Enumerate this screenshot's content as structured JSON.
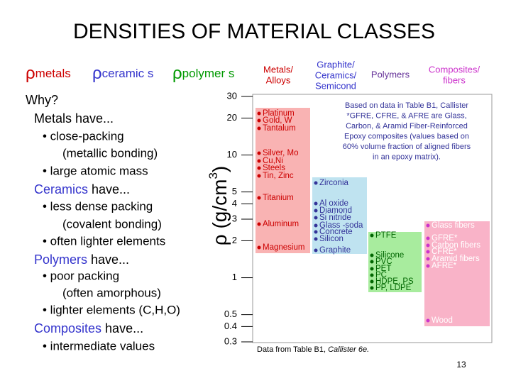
{
  "title": "DENSITIES OF MATERIAL CLASSES",
  "legend": [
    {
      "symbol": "ρ",
      "label": "metals",
      "color": "#cc0000"
    },
    {
      "symbol": "ρ",
      "label": "ceramic s",
      "color": "#3333cc"
    },
    {
      "symbol": "ρ",
      "label": "polymer s",
      "color": "#009900"
    }
  ],
  "why": "Why?",
  "sections": [
    {
      "heading": "Metals",
      "rest": " have...",
      "color": "#000000",
      "items": [
        {
          "text": "• close-packing",
          "cont": "(metallic bonding)"
        },
        {
          "text": "• large atomic mass"
        }
      ]
    },
    {
      "heading": "Ceramics",
      "rest": " have...",
      "color": "#3333cc",
      "items": [
        {
          "text": "• less dense packing",
          "cont": "(covalent bonding)"
        },
        {
          "text": "• often lighter elements"
        }
      ]
    },
    {
      "heading": "Polymers",
      "rest": " have...",
      "color": "#3333cc",
      "items": [
        {
          "text": "• poor packing",
          "cont": "(often amorphous)"
        },
        {
          "text": "• lighter elements (C,H,O)"
        }
      ]
    },
    {
      "heading": "Composites",
      "rest": " have...",
      "color": "#3333cc",
      "items": [
        {
          "text": "• intermediate values"
        }
      ]
    }
  ],
  "chart": {
    "y_label": "ρ (g/cm",
    "y_label_sup": "3",
    "y_label_end": ")",
    "ylim": [
      0.3,
      30
    ],
    "log_scale": true,
    "yticks": [
      0.3,
      0.4,
      0.5,
      1,
      2,
      3,
      4,
      5,
      10,
      20,
      30
    ],
    "columns": [
      {
        "header": [
          "Metals/",
          "Alloys"
        ],
        "color": "#cc0000",
        "fill": "#f9b3b3",
        "text_color": "#cc0000",
        "materials": [
          "Platinum",
          "Gold, W",
          "Tantalum",
          "Silver, Mo",
          "Cu,Ni",
          "Steels",
          "Tin, Zinc",
          "Titanium",
          "Aluminum",
          "Magnesium"
        ]
      },
      {
        "header": [
          "Graphite/",
          "Ceramics/",
          "Semicond"
        ],
        "color": "#3333cc",
        "fill": "#bfe3f0",
        "text_color": "#333399",
        "materials": [
          "Zirconia",
          "Al oxide",
          "Diamond",
          "Si nitride",
          "Glass -soda",
          "Concrete",
          "Silicon",
          "Graphite"
        ]
      },
      {
        "header": [
          "Polymers"
        ],
        "color": "#663399",
        "fill": "#a8ec9e",
        "text_color": "#006600",
        "materials": [
          "PTFE",
          "Silicone",
          "PVC",
          "PET",
          "PC",
          "HDPE, PS",
          "PP, LDPE"
        ]
      },
      {
        "header": [
          "Composites/",
          "fibers"
        ],
        "color": "#cc33cc",
        "fill": "#f9b3c8",
        "text_color": "#ffffff",
        "materials": [
          "Glass fibers",
          "GFRE*",
          "Carbon  fibers",
          "CFRE*",
          "Aramid fibers",
          "AFRE*",
          "Wood"
        ]
      }
    ],
    "note": [
      "Based on data in Table B1, Callister",
      "*GFRE, CFRE, & AFRE are Glass,",
      "Carbon, & Aramid Fiber-Reinforced",
      "Epoxy composites (values based on",
      "60% volume fraction of aligned fibers",
      "in an epoxy matrix)."
    ],
    "source": "Data from Table B1, ",
    "source_italic": "Callister 6e."
  },
  "page_number": "13"
}
